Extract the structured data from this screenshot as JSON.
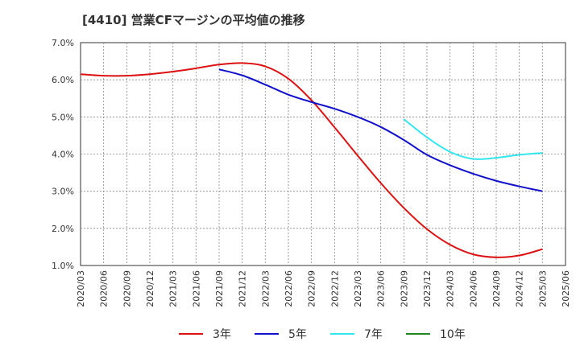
{
  "chart_data": {
    "type": "line",
    "title": "[4410]  営業CFマージンの平均値の推移",
    "ylim": [
      1.0,
      7.0
    ],
    "y_ticks": [
      "1.0%",
      "2.0%",
      "3.0%",
      "4.0%",
      "5.0%",
      "6.0%",
      "7.0%"
    ],
    "x_ticks": [
      "2020/03",
      "2020/06",
      "2020/09",
      "2020/12",
      "2021/03",
      "2021/06",
      "2021/09",
      "2021/12",
      "2022/03",
      "2022/06",
      "2022/09",
      "2022/12",
      "2023/03",
      "2023/06",
      "2023/09",
      "2023/12",
      "2024/03",
      "2024/06",
      "2024/09",
      "2024/12",
      "2025/03",
      "2025/06"
    ],
    "grid": true,
    "legend_position": "bottom",
    "series": [
      {
        "name": "3年",
        "color": "#dd1111",
        "points": [
          [
            "2020/03",
            6.15
          ],
          [
            "2020/06",
            6.11
          ],
          [
            "2020/09",
            6.11
          ],
          [
            "2020/12",
            6.15
          ],
          [
            "2021/03",
            6.22
          ],
          [
            "2021/06",
            6.31
          ],
          [
            "2021/09",
            6.41
          ],
          [
            "2021/12",
            6.45
          ],
          [
            "2022/03",
            6.36
          ],
          [
            "2022/06",
            6.03
          ],
          [
            "2022/09",
            5.45
          ],
          [
            "2022/12",
            4.72
          ],
          [
            "2023/03",
            3.96
          ],
          [
            "2023/06",
            3.22
          ],
          [
            "2023/09",
            2.55
          ],
          [
            "2023/12",
            1.98
          ],
          [
            "2024/03",
            1.56
          ],
          [
            "2024/06",
            1.3
          ],
          [
            "2024/09",
            1.22
          ],
          [
            "2024/12",
            1.27
          ],
          [
            "2025/03",
            1.44
          ]
        ]
      },
      {
        "name": "5年",
        "color": "#1111cc",
        "points": [
          [
            "2021/09",
            6.28
          ],
          [
            "2021/12",
            6.12
          ],
          [
            "2022/03",
            5.87
          ],
          [
            "2022/06",
            5.6
          ],
          [
            "2022/09",
            5.4
          ],
          [
            "2022/12",
            5.22
          ],
          [
            "2023/03",
            5.0
          ],
          [
            "2023/06",
            4.73
          ],
          [
            "2023/09",
            4.38
          ],
          [
            "2023/12",
            3.98
          ],
          [
            "2024/03",
            3.7
          ],
          [
            "2024/06",
            3.47
          ],
          [
            "2024/09",
            3.28
          ],
          [
            "2024/12",
            3.13
          ],
          [
            "2025/03",
            3.0
          ]
        ]
      },
      {
        "name": "7年",
        "color": "#33e5ee",
        "points": [
          [
            "2023/09",
            4.94
          ],
          [
            "2023/12",
            4.45
          ],
          [
            "2024/03",
            4.06
          ],
          [
            "2024/06",
            3.87
          ],
          [
            "2024/09",
            3.9
          ],
          [
            "2024/12",
            3.98
          ],
          [
            "2025/03",
            4.03
          ]
        ]
      },
      {
        "name": "10年",
        "color": "#228822",
        "points": []
      }
    ]
  }
}
